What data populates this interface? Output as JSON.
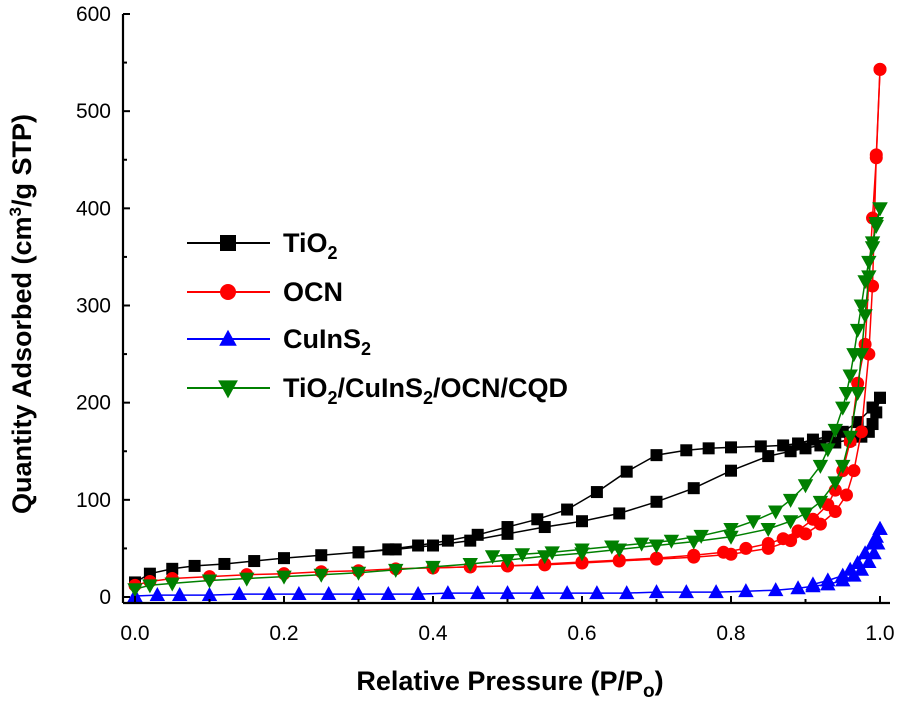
{
  "chart_data": {
    "type": "scatter",
    "xlabel": "Relative Pressure (P/P",
    "xlabel_sub": "o",
    "xlabel_end": ")",
    "ylabel": "Quantity Adsorbed (cm",
    "ylabel_sup": "3",
    "ylabel_end": "/g STP)",
    "xlim": [
      0,
      1.0
    ],
    "ylim": [
      0,
      600
    ],
    "xticks": [
      "0.0",
      "0.2",
      "0.4",
      "0.6",
      "0.8",
      "1.0"
    ],
    "yticks": [
      "0",
      "100",
      "200",
      "300",
      "400",
      "500",
      "600"
    ],
    "grid": false,
    "legend_position": "left",
    "series": [
      {
        "legend_label": "TiO",
        "legend_sub": "2",
        "legend_tail": "",
        "color": "#000000",
        "marker": "square",
        "adsorption": {
          "x": [
            0.0,
            0.02,
            0.05,
            0.08,
            0.12,
            0.16,
            0.2,
            0.25,
            0.3,
            0.35,
            0.4,
            0.45,
            0.5,
            0.55,
            0.6,
            0.65,
            0.7,
            0.75,
            0.8,
            0.85,
            0.88,
            0.9,
            0.92,
            0.94,
            0.96,
            0.975,
            0.985,
            0.99,
            0.995,
            1.0
          ],
          "y": [
            15,
            24,
            29,
            32,
            34,
            37,
            40,
            43,
            46,
            49,
            53,
            58,
            65,
            72,
            78,
            86,
            98,
            112,
            130,
            145,
            150,
            153,
            156,
            159,
            162,
            165,
            170,
            178,
            190,
            205
          ]
        },
        "desorption": {
          "x": [
            1.0,
            0.99,
            0.97,
            0.95,
            0.93,
            0.91,
            0.89,
            0.87,
            0.84,
            0.8,
            0.77,
            0.74,
            0.7,
            0.66,
            0.62,
            0.58,
            0.54,
            0.5,
            0.46,
            0.42,
            0.38,
            0.34,
            0.3
          ],
          "y": [
            205,
            195,
            180,
            170,
            165,
            162,
            158,
            156,
            155,
            154,
            153,
            151,
            146,
            129,
            108,
            90,
            80,
            72,
            64,
            58,
            53,
            49,
            46
          ]
        }
      },
      {
        "legend_label": "OCN",
        "legend_sub": "",
        "legend_tail": "",
        "color": "#ff0000",
        "marker": "circle",
        "adsorption": {
          "x": [
            0.0,
            0.02,
            0.05,
            0.1,
            0.15,
            0.2,
            0.25,
            0.3,
            0.35,
            0.4,
            0.45,
            0.5,
            0.55,
            0.6,
            0.65,
            0.7,
            0.75,
            0.8,
            0.85,
            0.88,
            0.9,
            0.92,
            0.94,
            0.955,
            0.965,
            0.975,
            0.985,
            0.99,
            0.995,
            1.0
          ],
          "y": [
            12,
            16,
            19,
            21,
            23,
            24,
            26,
            27,
            29,
            30,
            31,
            32,
            33,
            35,
            37,
            39,
            41,
            44,
            50,
            58,
            65,
            75,
            88,
            105,
            130,
            170,
            250,
            320,
            455,
            543
          ]
        },
        "desorption": {
          "x": [
            1.0,
            0.995,
            0.99,
            0.98,
            0.97,
            0.96,
            0.95,
            0.94,
            0.93,
            0.91,
            0.89,
            0.87,
            0.85,
            0.82,
            0.79,
            0.75,
            0.7,
            0.65,
            0.6,
            0.55,
            0.5,
            0.45,
            0.4
          ],
          "y": [
            543,
            452,
            390,
            260,
            220,
            160,
            130,
            110,
            95,
            80,
            68,
            60,
            55,
            50,
            46,
            43,
            40,
            38,
            36,
            34,
            32,
            31,
            30
          ]
        }
      },
      {
        "legend_label": "CuInS",
        "legend_sub": "2",
        "legend_tail": "",
        "color": "#0000ff",
        "marker": "triangle-up",
        "adsorption": {
          "x": [
            0.0,
            0.03,
            0.06,
            0.1,
            0.14,
            0.18,
            0.22,
            0.26,
            0.3,
            0.34,
            0.38,
            0.42,
            0.46,
            0.5,
            0.54,
            0.58,
            0.62,
            0.66,
            0.7,
            0.74,
            0.78,
            0.82,
            0.86,
            0.89,
            0.91,
            0.93,
            0.95,
            0.965,
            0.975,
            0.985,
            0.992,
            0.997,
            1.0
          ],
          "y": [
            1,
            2,
            2,
            2,
            3,
            3,
            3,
            3,
            3,
            3,
            3,
            4,
            4,
            4,
            4,
            4,
            4,
            4,
            5,
            5,
            5,
            6,
            7,
            9,
            11,
            13,
            17,
            22,
            28,
            36,
            45,
            55,
            70
          ]
        },
        "desorption": {
          "x": [
            1.0,
            0.995,
            0.99,
            0.98,
            0.97,
            0.96,
            0.95,
            0.93,
            0.91
          ],
          "y": [
            70,
            62,
            55,
            45,
            35,
            28,
            22,
            17,
            13
          ]
        }
      },
      {
        "legend_label": "TiO",
        "legend_sub": "2",
        "legend_tail": "/CuInS",
        "legend_sub2": "2",
        "legend_tail2": "/OCN/CQD",
        "color": "#008000",
        "marker": "triangle-down",
        "adsorption": {
          "x": [
            0.0,
            0.02,
            0.05,
            0.1,
            0.15,
            0.2,
            0.25,
            0.3,
            0.35,
            0.4,
            0.45,
            0.5,
            0.55,
            0.6,
            0.65,
            0.7,
            0.75,
            0.8,
            0.85,
            0.88,
            0.9,
            0.92,
            0.94,
            0.95,
            0.96,
            0.97,
            0.975,
            0.98,
            0.985,
            0.99,
            0.995,
            1.0
          ],
          "y": [
            8,
            12,
            14,
            17,
            19,
            21,
            23,
            25,
            28,
            31,
            34,
            38,
            42,
            45,
            49,
            53,
            57,
            62,
            70,
            78,
            86,
            98,
            118,
            135,
            165,
            210,
            250,
            290,
            330,
            360,
            385,
            400
          ]
        },
        "desorption": {
          "x": [
            1.0,
            0.995,
            0.99,
            0.985,
            0.98,
            0.975,
            0.97,
            0.965,
            0.96,
            0.955,
            0.95,
            0.94,
            0.93,
            0.92,
            0.9,
            0.88,
            0.86,
            0.83,
            0.8,
            0.76,
            0.72,
            0.68,
            0.64,
            0.6,
            0.56,
            0.52,
            0.48
          ],
          "y": [
            400,
            382,
            365,
            345,
            325,
            300,
            275,
            250,
            228,
            210,
            195,
            172,
            152,
            135,
            115,
            100,
            88,
            78,
            70,
            63,
            58,
            55,
            52,
            49,
            46,
            44,
            42
          ]
        }
      }
    ]
  }
}
